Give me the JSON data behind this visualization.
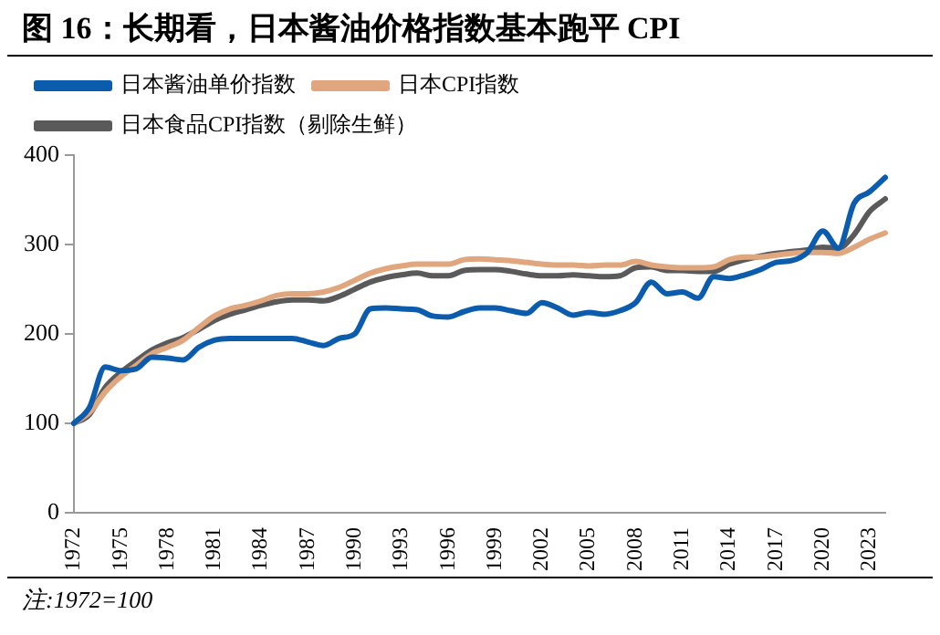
{
  "chart_data": {
    "type": "line",
    "title": "图 16：长期看，日本酱油价格指数基本跑平 CPI",
    "categories": [
      "1972",
      null,
      null,
      "1975",
      null,
      null,
      "1978",
      null,
      null,
      "1981",
      null,
      null,
      "1984",
      null,
      null,
      "1987",
      null,
      null,
      "1990",
      null,
      null,
      "1993",
      null,
      null,
      "1996",
      null,
      null,
      "1999",
      null,
      null,
      "2002",
      null,
      null,
      "2005",
      null,
      null,
      "2008",
      null,
      null,
      "2011",
      null,
      null,
      "2014",
      null,
      null,
      "2017",
      null,
      null,
      "2020",
      null,
      null,
      "2023",
      null
    ],
    "series": [
      {
        "name": "日本酱油单价指数",
        "color": "#0b5cad",
        "values": [
          100,
          118,
          163,
          159,
          161,
          174,
          173,
          171,
          185,
          193,
          195,
          195,
          195,
          195,
          195,
          191,
          187,
          195,
          200,
          228,
          229,
          228,
          227,
          220,
          219,
          225,
          229,
          229,
          226,
          223,
          235,
          229,
          221,
          224,
          222,
          226,
          235,
          258,
          245,
          247,
          240,
          264,
          262,
          266,
          272,
          280,
          282,
          291,
          315,
          296,
          346,
          359,
          375
        ]
      },
      {
        "name": "日本CPI指数",
        "color": "#e0a67e",
        "values": [
          100,
          112,
          135,
          152,
          165,
          178,
          185,
          193,
          207,
          220,
          228,
          232,
          237,
          243,
          245,
          245,
          247,
          252,
          260,
          268,
          273,
          276,
          278,
          278,
          278,
          283,
          284,
          283,
          282,
          280,
          278,
          277,
          277,
          276,
          277,
          277,
          281,
          277,
          275,
          274,
          274,
          275,
          283,
          286,
          286,
          288,
          290,
          291,
          291,
          290,
          297,
          306,
          313
        ]
      },
      {
        "name": "日本食品CPI指数（剔除生鲜）",
        "color": "#5a5a5a",
        "values": [
          100,
          110,
          140,
          157,
          170,
          182,
          190,
          196,
          205,
          215,
          222,
          227,
          232,
          236,
          238,
          238,
          237,
          242,
          250,
          258,
          263,
          266,
          268,
          265,
          265,
          271,
          272,
          272,
          270,
          267,
          265,
          265,
          266,
          265,
          264,
          265,
          274,
          275,
          271,
          271,
          270,
          270,
          278,
          283,
          287,
          290,
          292,
          294,
          297,
          296,
          311,
          337,
          351
        ]
      }
    ],
    "ylim": [
      0,
      400
    ],
    "yticks": [
      0,
      100,
      200,
      300,
      400
    ],
    "grid": false,
    "legend": "top left",
    "marker": "none",
    "line_style": "solid",
    "annotations": [
      "注:1972=100"
    ]
  }
}
